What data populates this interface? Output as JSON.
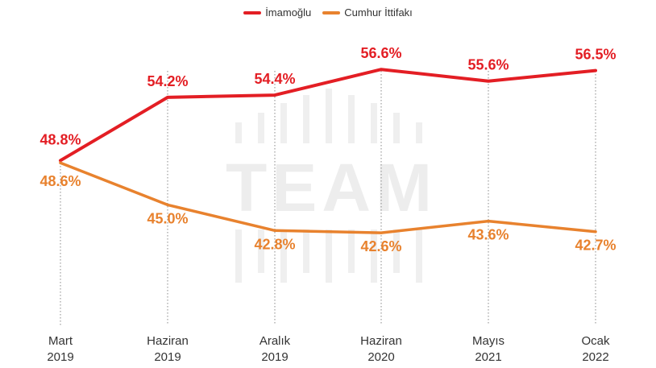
{
  "chart_data": {
    "type": "line",
    "title": "",
    "xlabel": "",
    "ylabel": "",
    "ylim": [
      38,
      60
    ],
    "grid": "vertical dotted guide lines at each category",
    "legend_position": "top-center",
    "categories": [
      [
        "Mart",
        "2019"
      ],
      [
        "Haziran",
        "2019"
      ],
      [
        "Aralık",
        "2019"
      ],
      [
        "Haziran",
        "2020"
      ],
      [
        "Mayıs",
        "2021"
      ],
      [
        "Ocak",
        "2022"
      ]
    ],
    "series": [
      {
        "name": "İmamoğlu",
        "color": "#e31e24",
        "values": [
          48.8,
          54.2,
          54.4,
          56.6,
          55.6,
          56.5
        ],
        "labels": [
          "48.8%",
          "54.2%",
          "54.4%",
          "56.6%",
          "55.6%",
          "56.5%"
        ]
      },
      {
        "name": "Cumhur İttifakı",
        "color": "#e8822e",
        "values": [
          48.6,
          45.0,
          42.8,
          42.6,
          43.6,
          42.7
        ],
        "labels": [
          "48.6%",
          "45.0%",
          "42.8%",
          "42.6%",
          "43.6%",
          "42.7%"
        ]
      }
    ],
    "watermark": "TEAM"
  }
}
